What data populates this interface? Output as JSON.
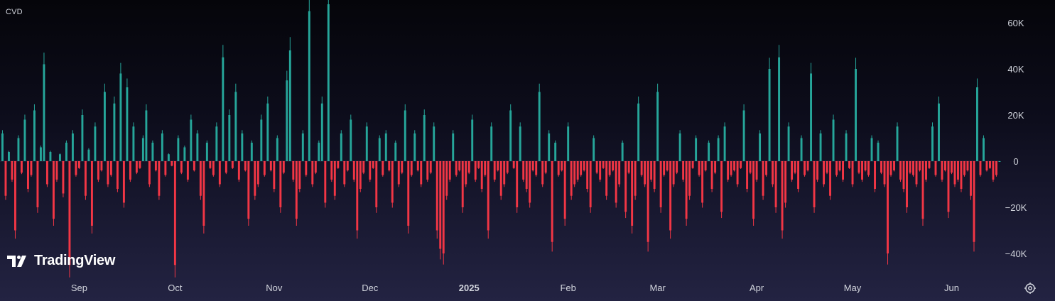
{
  "indicator": {
    "label": "CVD"
  },
  "logo": {
    "text": "TradingView"
  },
  "settings": {
    "icon": "gear-icon"
  },
  "colors": {
    "positive": "#26a69a",
    "negative": "#f23645",
    "text": "#d1d4dc",
    "zero_line": "#2a2a40"
  },
  "chart_data": {
    "type": "bar",
    "title": "CVD",
    "xlabel": "",
    "ylabel": "",
    "ylim": [
      -50000,
      70000
    ],
    "y_ticks": [
      {
        "value": 60000,
        "label": "60K"
      },
      {
        "value": 40000,
        "label": "40K"
      },
      {
        "value": 20000,
        "label": "20K"
      },
      {
        "value": 0,
        "label": "0"
      },
      {
        "value": -20000,
        "label": "−20K"
      },
      {
        "value": -40000,
        "label": "−40K"
      }
    ],
    "x_ticks": [
      {
        "index": 24,
        "label": "Sep",
        "bold": false
      },
      {
        "index": 54,
        "label": "Oct",
        "bold": false
      },
      {
        "index": 85,
        "label": "Nov",
        "bold": false
      },
      {
        "index": 115,
        "label": "Dec",
        "bold": false
      },
      {
        "index": 146,
        "label": "2025",
        "bold": true
      },
      {
        "index": 177,
        "label": "Feb",
        "bold": false
      },
      {
        "index": 205,
        "label": "Mar",
        "bold": false
      },
      {
        "index": 236,
        "label": "Apr",
        "bold": false
      },
      {
        "index": 266,
        "label": "May",
        "bold": false
      },
      {
        "index": 297,
        "label": "Jun",
        "bold": false
      }
    ],
    "values": [
      12000,
      -15000,
      4000,
      -8000,
      -30000,
      10000,
      -5000,
      18000,
      -12000,
      -6000,
      22000,
      -20000,
      6000,
      42000,
      -10000,
      4000,
      -25000,
      -8000,
      3000,
      -14000,
      8000,
      -45000,
      12000,
      -6000,
      -3000,
      20000,
      -15000,
      5000,
      -28000,
      15000,
      -8000,
      -4000,
      30000,
      -10000,
      -6000,
      25000,
      -12000,
      38000,
      -18000,
      32000,
      -8000,
      15000,
      -5000,
      -3000,
      10000,
      22000,
      -10000,
      8000,
      -4000,
      -15000,
      12000,
      -6000,
      3000,
      -2000,
      -45000,
      10000,
      -5000,
      6000,
      -8000,
      18000,
      -4000,
      12000,
      -15000,
      -28000,
      8000,
      -3000,
      -6000,
      15000,
      -10000,
      45000,
      -5000,
      20000,
      -3000,
      30000,
      -8000,
      12000,
      -4000,
      -25000,
      8000,
      -15000,
      -10000,
      18000,
      -6000,
      25000,
      -4000,
      -12000,
      10000,
      -20000,
      -5000,
      35000,
      48000,
      -8000,
      -25000,
      -12000,
      12000,
      -6000,
      65000,
      -10000,
      -5000,
      8000,
      25000,
      -18000,
      68000,
      -8000,
      -15000,
      -3000,
      12000,
      -10000,
      -4000,
      18000,
      -8000,
      -30000,
      -12000,
      -5000,
      15000,
      -8000,
      -3000,
      -20000,
      10000,
      -6000,
      12000,
      -4000,
      -18000,
      8000,
      -10000,
      -5000,
      22000,
      -28000,
      -6000,
      12000,
      -4000,
      -10000,
      20000,
      -8000,
      -5000,
      15000,
      -30000,
      -38000,
      -40000,
      -15000,
      -8000,
      12000,
      -6000,
      -4000,
      -20000,
      -10000,
      -5000,
      18000,
      -8000,
      -3000,
      -12000,
      -6000,
      -30000,
      15000,
      -8000,
      -4000,
      -15000,
      -10000,
      -5000,
      22000,
      -3000,
      -20000,
      15000,
      -8000,
      -12000,
      -18000,
      -4000,
      -6000,
      30000,
      -10000,
      -5000,
      12000,
      -35000,
      8000,
      -6000,
      -4000,
      -25000,
      15000,
      -15000,
      -10000,
      -8000,
      -6000,
      -4000,
      -12000,
      -20000,
      10000,
      -5000,
      -8000,
      -3000,
      -15000,
      -6000,
      -4000,
      -18000,
      -10000,
      8000,
      -22000,
      -5000,
      -28000,
      -15000,
      25000,
      -6000,
      -10000,
      -35000,
      -8000,
      -12000,
      30000,
      -20000,
      -6000,
      -4000,
      -30000,
      -10000,
      -5000,
      12000,
      -8000,
      -25000,
      -15000,
      -3000,
      10000,
      -6000,
      -18000,
      -4000,
      8000,
      -12000,
      -5000,
      10000,
      -22000,
      15000,
      -8000,
      -6000,
      -4000,
      -10000,
      -3000,
      22000,
      -12000,
      -5000,
      -25000,
      -8000,
      12000,
      -15000,
      -6000,
      40000,
      -10000,
      -20000,
      45000,
      -30000,
      -18000,
      15000,
      -8000,
      -5000,
      -12000,
      10000,
      -6000,
      -4000,
      38000,
      -20000,
      -8000,
      12000,
      -10000,
      -5000,
      -15000,
      18000,
      -6000,
      -4000,
      -8000,
      12000,
      -3000,
      -10000,
      40000,
      -5000,
      -8000,
      -4000,
      -6000,
      10000,
      -12000,
      8000,
      -5000,
      -10000,
      -40000,
      -6000,
      -4000,
      15000,
      -8000,
      -12000,
      -20000,
      -5000,
      -6000,
      -10000,
      -4000,
      -25000,
      -8000,
      -3000,
      15000,
      -6000,
      25000,
      -8000,
      -4000,
      -22000,
      -5000,
      -10000,
      -8000,
      -12000,
      -6000,
      -4000,
      -15000,
      -35000,
      32000,
      -6000,
      10000,
      -4000,
      -3000,
      -8000,
      -6000,
      0
    ]
  }
}
